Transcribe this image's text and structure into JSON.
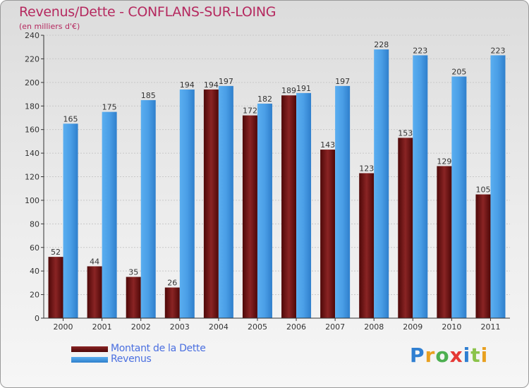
{
  "title": "Revenus/Dette - CONFLANS-SUR-LOING",
  "subtitle": "(en milliers d'€)",
  "logo": {
    "letters": [
      "P",
      "r",
      "o",
      "x",
      "i",
      "t",
      "i"
    ],
    "colors": [
      "#2f7fd1",
      "#e8a020",
      "#4caf50",
      "#e53935",
      "#2f7fd1",
      "#8bc34a",
      "#e8a020"
    ]
  },
  "chart_data": {
    "type": "bar",
    "categories": [
      "2000",
      "2001",
      "2002",
      "2003",
      "2004",
      "2005",
      "2006",
      "2007",
      "2008",
      "2009",
      "2010",
      "2011"
    ],
    "series": [
      {
        "name": "Montant de la Dette",
        "color": "#7a1414",
        "values": [
          52,
          44,
          35,
          26,
          194,
          172,
          189,
          143,
          123,
          153,
          129,
          105
        ]
      },
      {
        "name": "Revenus",
        "color": "#4a9ee6",
        "values": [
          165,
          175,
          185,
          194,
          197,
          182,
          191,
          197,
          228,
          223,
          205,
          223
        ]
      }
    ],
    "ylim": [
      0,
      240
    ],
    "yticks": [
      0,
      20,
      40,
      60,
      80,
      100,
      120,
      140,
      160,
      180,
      200,
      220,
      240
    ],
    "grid": true,
    "legend_position": "bottom-left"
  }
}
